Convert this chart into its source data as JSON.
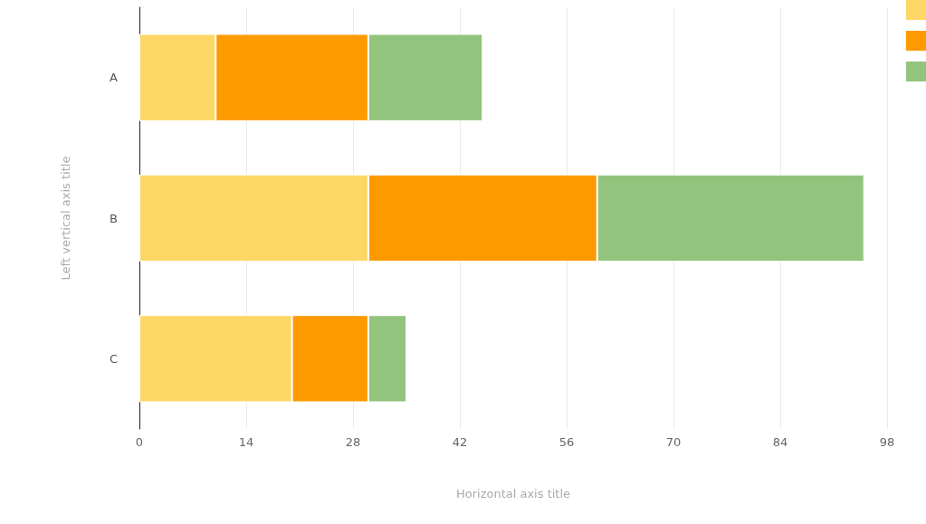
{
  "chart_data": {
    "type": "bar",
    "orientation": "horizontal",
    "stacked": true,
    "xlabel": "Horizontal axis title",
    "ylabel": "Left vertical axis title",
    "categories": [
      "A",
      "B",
      "C"
    ],
    "series": [
      {
        "color": "#fdd765",
        "values": [
          10,
          30,
          20
        ]
      },
      {
        "color": "#fd9a00",
        "values": [
          20,
          30,
          10
        ]
      },
      {
        "color": "#93c47d",
        "values": [
          15,
          35,
          5
        ]
      }
    ],
    "xlim": [
      0,
      98
    ],
    "xticks": [
      0,
      14,
      28,
      42,
      56,
      70,
      84,
      98
    ],
    "grid": "x"
  }
}
